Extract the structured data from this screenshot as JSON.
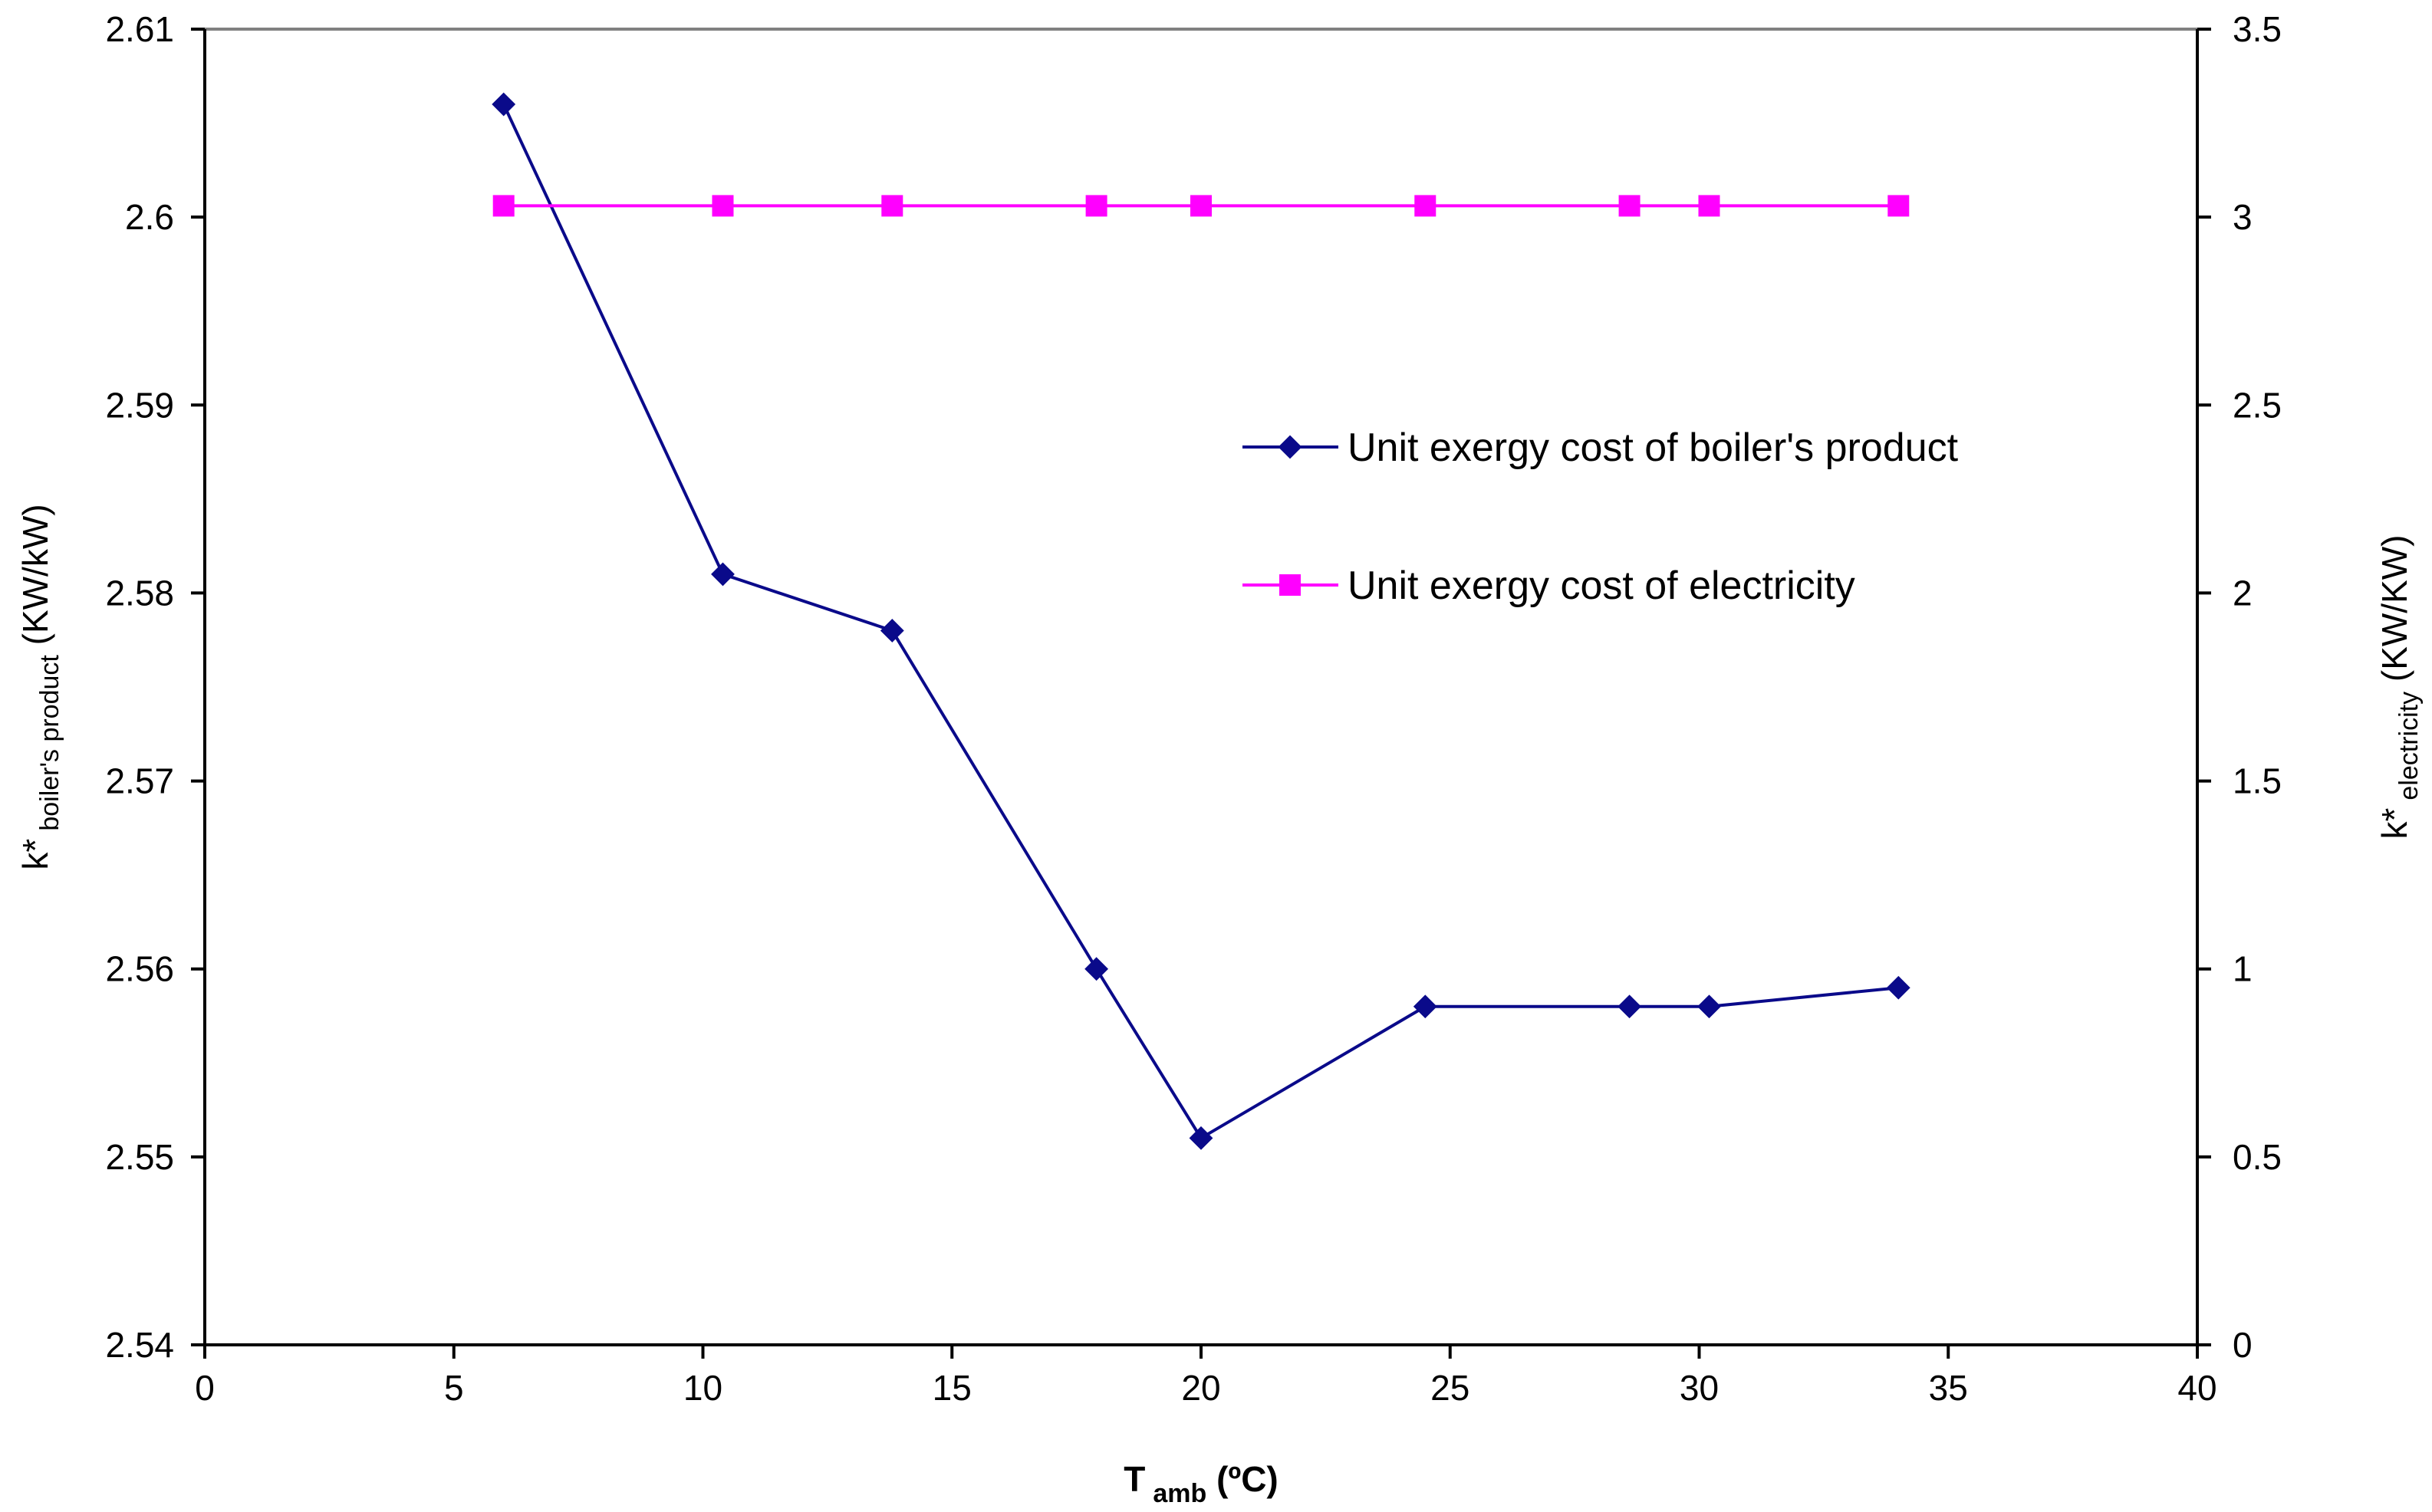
{
  "chart_data": {
    "type": "line",
    "title": "",
    "x": [
      6,
      10.4,
      13.8,
      17.9,
      20,
      24.5,
      28.6,
      30.2,
      34
    ],
    "xlabel": {
      "main": "T",
      "sub": "amb",
      "suffix": " (ºC)"
    },
    "xlim": [
      0,
      40
    ],
    "xticks": [
      "0",
      "5",
      "10",
      "15",
      "20",
      "25",
      "30",
      "35",
      "40"
    ],
    "ylabel_left": {
      "main": "k*",
      "sub": "boiler's product",
      "suffix": " (KW/kW)"
    },
    "ylim_left": [
      2.54,
      2.61
    ],
    "yticks_left": [
      "2.54",
      "2.55",
      "2.56",
      "2.57",
      "2.58",
      "2.59",
      "2.6",
      "2.61"
    ],
    "ylabel_right": {
      "main": "k*",
      "sub": "electricity",
      "suffix": " (KW/KW)"
    },
    "ylim_right": [
      0,
      3.5
    ],
    "yticks_right": [
      "0",
      "0.5",
      "1",
      "1.5",
      "2",
      "2.5",
      "3",
      "3.5"
    ],
    "series": [
      {
        "name": "Unit exergy cost of boiler's product",
        "axis": "left",
        "marker": "diamond",
        "color": "#0a0a8a",
        "values": [
          2.606,
          2.581,
          2.578,
          2.56,
          2.551,
          2.558,
          2.558,
          2.558,
          2.559
        ]
      },
      {
        "name": "Unit exergy cost of electricity",
        "axis": "right",
        "marker": "square",
        "color": "#ff00ff",
        "values": [
          3.03,
          3.03,
          3.03,
          3.03,
          3.03,
          3.03,
          3.03,
          3.03,
          3.03
        ]
      }
    ],
    "legend_position": "center-right",
    "grid": false
  }
}
